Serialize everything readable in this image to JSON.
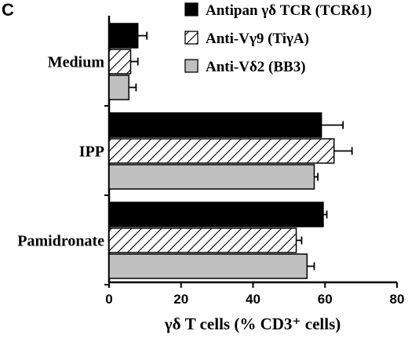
{
  "panel_label": "C",
  "chart_data": {
    "type": "bar",
    "orientation": "horizontal",
    "categories": [
      "Medium",
      "IPP",
      "Pamidronate"
    ],
    "series": [
      {
        "name": "Antipan γδ TCR (TCRδ1)",
        "fill": "solid-black",
        "color": "#000000",
        "values": [
          8,
          59,
          59.5
        ],
        "errors": [
          2.5,
          6,
          1
        ]
      },
      {
        "name": "Anti-Vγ9 (TiγA)",
        "fill": "diagonal-hatch",
        "color": "#000000",
        "values": [
          6,
          62.5,
          52
        ],
        "errors": [
          2,
          5,
          1.5
        ]
      },
      {
        "name": "Anti-Vδ2 (BB3)",
        "fill": "light-gray",
        "color": "#c0c0c0",
        "values": [
          5.5,
          57,
          55
        ],
        "errors": [
          2,
          1,
          2
        ]
      }
    ],
    "xlim": [
      0,
      80
    ],
    "xticks": [
      "0",
      "20",
      "40",
      "60",
      "80"
    ],
    "xlabel": "γδ T cells (% CD3⁺ cells)",
    "legend_position": "top-right",
    "grid": false
  }
}
